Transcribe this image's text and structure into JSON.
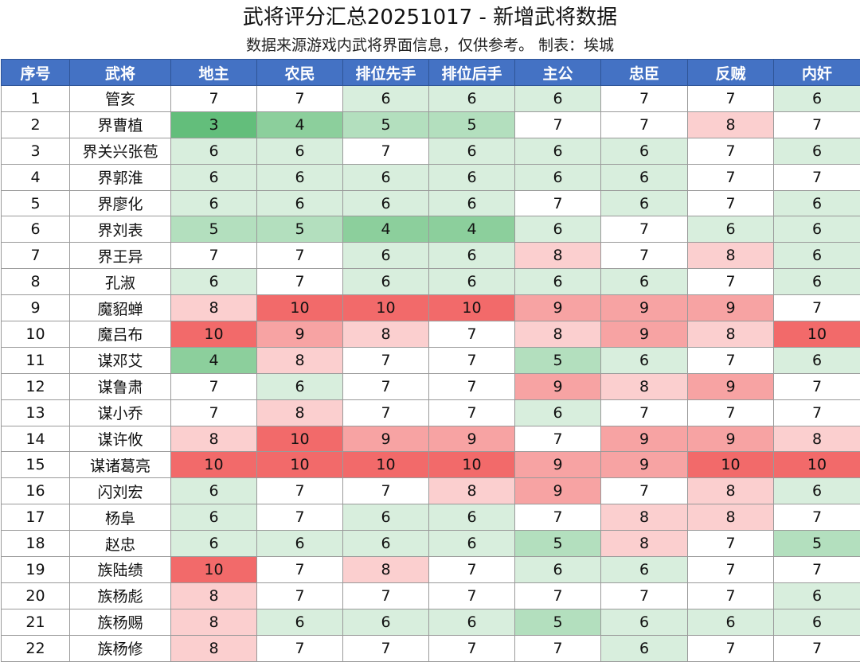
{
  "title": "武将评分汇总20251017 - 新增武将数据",
  "subtitle": "数据来源游戏内武将界面信息，仅供参考。 制表：埃城",
  "colors": {
    "header_bg": "#4472c4",
    "header_text": "#ffffff",
    "score_3": "#63be7b",
    "score_4": "#8ccf9c",
    "score_5": "#b3dfbe",
    "score_6": "#d8eedd",
    "score_7": "#ffffff",
    "score_8": "#fbcfcf",
    "score_9": "#f7a3a3",
    "score_10": "#f26a6a"
  },
  "columns": [
    "序号",
    "武将",
    "地主",
    "农民",
    "排位先手",
    "排位后手",
    "主公",
    "忠臣",
    "反贼",
    "内奸"
  ],
  "rows": [
    {
      "no": "1",
      "name": "管亥",
      "scores": [
        7,
        7,
        6,
        6,
        6,
        7,
        7,
        6
      ]
    },
    {
      "no": "2",
      "name": "界曹植",
      "scores": [
        3,
        4,
        5,
        5,
        7,
        7,
        8,
        7
      ]
    },
    {
      "no": "3",
      "name": "界关兴张苞",
      "scores": [
        6,
        6,
        7,
        6,
        6,
        6,
        7,
        6
      ]
    },
    {
      "no": "4",
      "name": "界郭淮",
      "scores": [
        6,
        6,
        6,
        6,
        6,
        6,
        7,
        7
      ]
    },
    {
      "no": "5",
      "name": "界廖化",
      "scores": [
        6,
        6,
        6,
        6,
        7,
        6,
        7,
        6
      ]
    },
    {
      "no": "6",
      "name": "界刘表",
      "scores": [
        5,
        5,
        4,
        4,
        6,
        7,
        6,
        6
      ]
    },
    {
      "no": "7",
      "name": "界王异",
      "scores": [
        7,
        7,
        6,
        6,
        8,
        7,
        8,
        6
      ]
    },
    {
      "no": "8",
      "name": "孔淑",
      "scores": [
        6,
        7,
        6,
        6,
        6,
        6,
        7,
        6
      ]
    },
    {
      "no": "9",
      "name": "魔貂蝉",
      "scores": [
        8,
        10,
        10,
        10,
        9,
        9,
        9,
        7
      ]
    },
    {
      "no": "10",
      "name": "魔吕布",
      "scores": [
        10,
        9,
        8,
        7,
        8,
        9,
        8,
        10
      ]
    },
    {
      "no": "11",
      "name": "谋邓艾",
      "scores": [
        4,
        8,
        7,
        7,
        5,
        6,
        7,
        6
      ]
    },
    {
      "no": "12",
      "name": "谋鲁肃",
      "scores": [
        7,
        6,
        7,
        7,
        9,
        8,
        9,
        7
      ]
    },
    {
      "no": "13",
      "name": "谋小乔",
      "scores": [
        7,
        8,
        7,
        7,
        6,
        7,
        7,
        7
      ]
    },
    {
      "no": "14",
      "name": "谋许攸",
      "scores": [
        8,
        10,
        9,
        9,
        7,
        9,
        9,
        8
      ]
    },
    {
      "no": "15",
      "name": "谋诸葛亮",
      "scores": [
        10,
        10,
        10,
        10,
        9,
        9,
        10,
        10
      ]
    },
    {
      "no": "16",
      "name": "闪刘宏",
      "scores": [
        6,
        7,
        7,
        8,
        9,
        7,
        8,
        6
      ]
    },
    {
      "no": "17",
      "name": "杨阜",
      "scores": [
        6,
        7,
        6,
        6,
        7,
        8,
        8,
        7
      ]
    },
    {
      "no": "18",
      "name": "赵忠",
      "scores": [
        6,
        6,
        6,
        6,
        5,
        8,
        7,
        5
      ]
    },
    {
      "no": "19",
      "name": "族陆绩",
      "scores": [
        10,
        7,
        8,
        7,
        6,
        6,
        7,
        7
      ]
    },
    {
      "no": "20",
      "name": "族杨彪",
      "scores": [
        8,
        7,
        7,
        7,
        7,
        7,
        7,
        6
      ]
    },
    {
      "no": "21",
      "name": "族杨赐",
      "scores": [
        8,
        6,
        6,
        6,
        5,
        6,
        6,
        6
      ]
    },
    {
      "no": "22",
      "name": "族杨修",
      "scores": [
        8,
        7,
        7,
        7,
        7,
        6,
        7,
        7
      ]
    }
  ]
}
